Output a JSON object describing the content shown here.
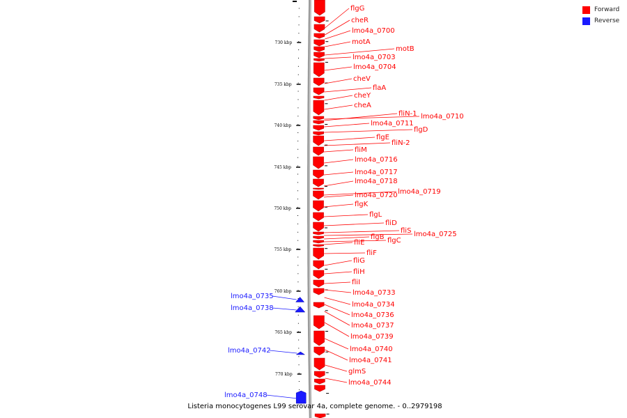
{
  "legend": {
    "forward_label": "Forward",
    "reverse_label": "Reverse",
    "forward_color": "#ff0000",
    "reverse_color": "#1a1aff"
  },
  "caption": "Listeria monocytogenes L99 serovar 4a, complete genome. - 0..2979198",
  "axis": {
    "ticks": [
      {
        "label": "730 kbp",
        "kbp": 730
      },
      {
        "label": "735 kbp",
        "kbp": 735
      },
      {
        "label": "740 kbp",
        "kbp": 740
      },
      {
        "label": "745 kbp",
        "kbp": 745
      },
      {
        "label": "750 kbp",
        "kbp": 750
      },
      {
        "label": "755 kbp",
        "kbp": 755
      },
      {
        "label": "760 kbp",
        "kbp": 760
      },
      {
        "label": "765 kbp",
        "kbp": 765
      },
      {
        "label": "770 kbp",
        "kbp": 770
      }
    ]
  },
  "forward_genes": [
    "flgG",
    "cheR",
    "lmo4a_0700",
    "motA",
    "motB",
    "lmo4a_0703",
    "lmo4a_0704",
    "cheV",
    "flaA",
    "cheY",
    "cheA",
    "fliN-1",
    "lmo4a_0710",
    "lmo4a_0711",
    "flgD",
    "flgE",
    "fliN-2",
    "fliM",
    "lmo4a_0716",
    "lmo4a_0717",
    "lmo4a_0718",
    "lmo4a_0719",
    "lmo4a_0720",
    "flgK",
    "flgL",
    "fliD",
    "fliS",
    "lmo4a_0725",
    "flgB",
    "flgC",
    "fliE",
    "fliF",
    "fliG",
    "fliH",
    "fliI",
    "lmo4a_0733",
    "lmo4a_0734",
    "lmo4a_0736",
    "lmo4a_0737",
    "lmo4a_0739",
    "lmo4a_0740",
    "lmo4a_0741",
    "glmS",
    "lmo4a_0744"
  ],
  "reverse_genes": [
    "lmo4a_0735",
    "lmo4a_0738",
    "lmo4a_0742",
    "lmo4a_0748"
  ]
}
